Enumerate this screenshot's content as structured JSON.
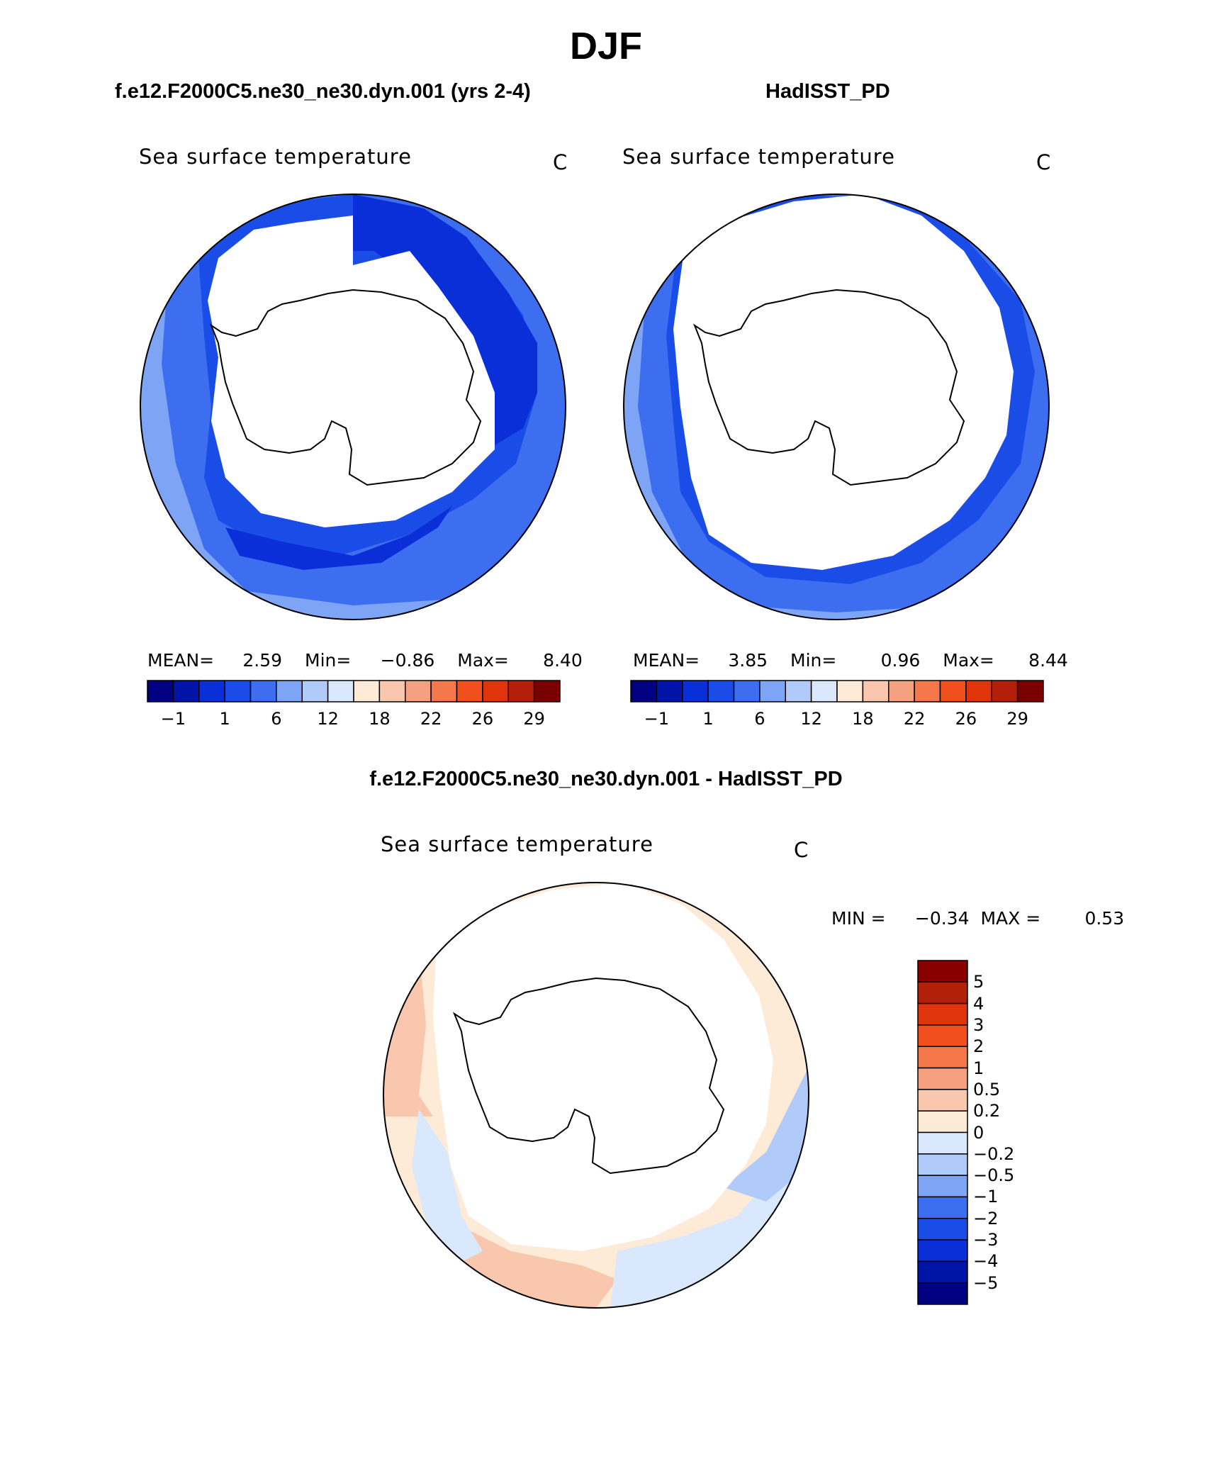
{
  "figure": {
    "title": "DJF"
  },
  "panels": [
    {
      "header": "f.e12.F2000C5.ne30_ne30.dyn.001 (yrs 2-4)",
      "variable": "Sea surface temperature",
      "units": "C",
      "stats": {
        "mean_label": "MEAN=",
        "mean": "2.59",
        "min_label": "Min=",
        "min": "−0.86",
        "max_label": "Max=",
        "max": "8.40"
      }
    },
    {
      "header": "HadISST_PD",
      "variable": "Sea surface temperature",
      "units": "C",
      "stats": {
        "mean_label": "MEAN=",
        "mean": "3.85",
        "min_label": "Min=",
        "min": "0.96",
        "max_label": "Max=",
        "max": "8.44"
      }
    },
    {
      "header": "f.e12.F2000C5.ne30_ne30.dyn.001 - HadISST_PD",
      "variable": "Sea surface temperature",
      "units": "C",
      "stats": {
        "min_label": "MIN =",
        "min": "−0.34",
        "max_label": "MAX =",
        "max": "0.53"
      }
    }
  ],
  "colorbar_abs": {
    "colors": [
      "#000080",
      "#0015a8",
      "#0a2ed8",
      "#1a4de8",
      "#3d6ef0",
      "#7ea5f5",
      "#b0cbfa",
      "#d9e8fc",
      "#fdebd8",
      "#f9c7ad",
      "#f5a17f",
      "#f5784a",
      "#f24f1f",
      "#e0350c",
      "#b3200a",
      "#7a0000"
    ],
    "tick_labels": [
      "−1",
      "1",
      "6",
      "12",
      "18",
      "22",
      "26",
      "29"
    ]
  },
  "colorbar_diff": {
    "colors_top_to_bottom": [
      "#8a0000",
      "#b3200a",
      "#e0350c",
      "#f24f1f",
      "#f5784a",
      "#f5a17f",
      "#f9c7ad",
      "#fdebd8",
      "#d9e8fc",
      "#b0cbfa",
      "#7ea5f5",
      "#3d6ef0",
      "#1a4de8",
      "#0a2ed8",
      "#0015a8",
      "#000080"
    ],
    "tick_labels": [
      "5",
      "4",
      "3",
      "2",
      "1",
      "0.5",
      "0.2",
      "0",
      "−0.2",
      "−0.5",
      "−1",
      "−2",
      "−3",
      "−4",
      "−5"
    ]
  },
  "legend_colors": {
    "ocean_cold": "#1a4de8",
    "ocean_colder": "#0a2ed8",
    "ocean_mild": "#3d6ef0",
    "ocean_warm": "#7ea5f5",
    "diff_pos": "#f9c7ad",
    "diff_neg": "#d9e8fc"
  }
}
